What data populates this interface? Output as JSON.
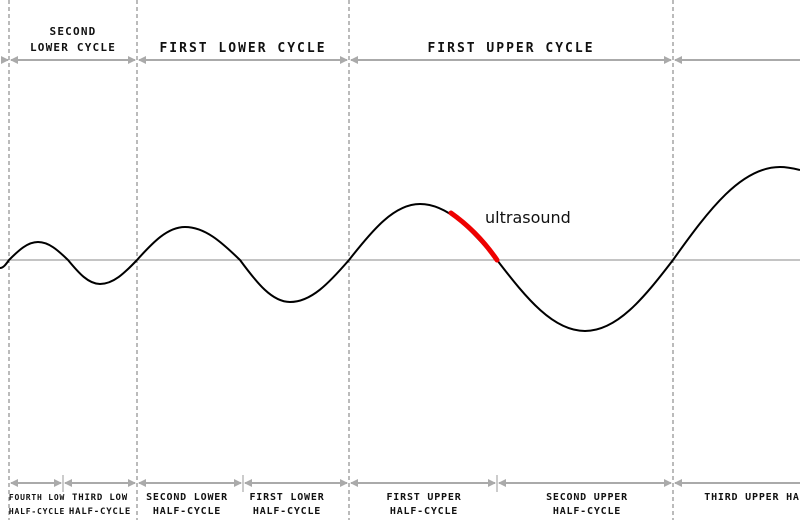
{
  "cycles": [
    {
      "lines": [
        "SECOND",
        "LOWER CYCLE"
      ]
    },
    {
      "lines": [
        "FIRST LOWER CYCLE"
      ]
    },
    {
      "lines": [
        "FIRST UPPER CYCLE"
      ]
    }
  ],
  "half_cycles": [
    {
      "lines": [
        "FOURTH LOW",
        "HALF-CYCLE"
      ]
    },
    {
      "lines": [
        "THIRD LOW",
        "HALF-CYCLE"
      ]
    },
    {
      "lines": [
        "SECOND LOWER",
        "HALF-CYCLE"
      ]
    },
    {
      "lines": [
        "FIRST LOWER",
        "HALF-CYCLE"
      ]
    },
    {
      "lines": [
        "FIRST UPPER",
        "HALF-CYCLE"
      ]
    },
    {
      "lines": [
        "SECOND UPPER",
        "HALF-CYCLE"
      ]
    },
    {
      "lines": [
        "THIRD UPPER HA"
      ]
    }
  ],
  "highlight": {
    "label": "ultrasound"
  }
}
